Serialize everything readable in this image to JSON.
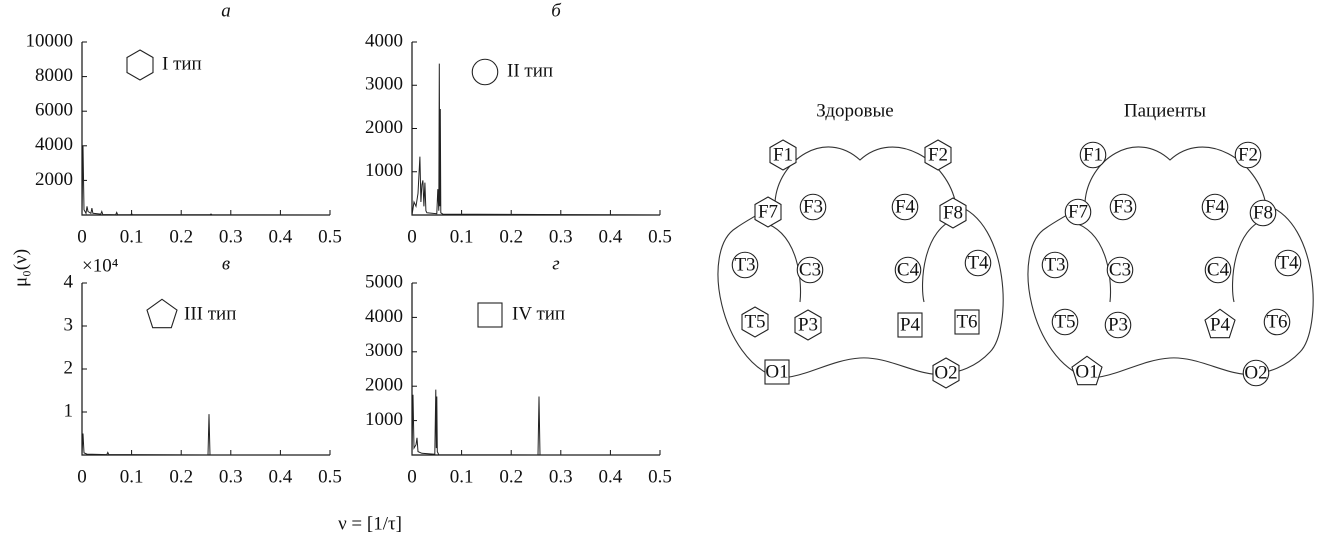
{
  "figure": {
    "ylabel": "μ₀(ν)",
    "xlabel": "ν = [1/τ]"
  },
  "chart_data": [
    {
      "type": "line",
      "title": "а",
      "xlim": [
        0,
        0.5
      ],
      "xticks": [
        0,
        0.1,
        0.2,
        0.3,
        0.4,
        0.5
      ],
      "ylim": [
        0,
        10000
      ],
      "yticks": [
        2000,
        4000,
        6000,
        8000,
        10000
      ],
      "x": [
        0,
        0.002,
        0.004,
        0.008,
        0.01,
        0.012,
        0.018,
        0.02,
        0.022,
        0.038,
        0.04,
        0.042,
        0.068,
        0.07,
        0.072,
        0.098,
        0.1,
        0.102,
        0.258,
        0.26,
        0.262,
        0.5
      ],
      "series": [
        {
          "name": "I тип",
          "marker": "hexagon",
          "color": "#222222",
          "values": [
            0,
            4000,
            300,
            100,
            500,
            200,
            100,
            400,
            100,
            50,
            200,
            30,
            20,
            150,
            20,
            10,
            80,
            10,
            10,
            60,
            10,
            0
          ]
        }
      ]
    },
    {
      "type": "line",
      "title": "б",
      "xlim": [
        0,
        0.5
      ],
      "xticks": [
        0,
        0.1,
        0.2,
        0.3,
        0.4,
        0.5
      ],
      "ylim": [
        0,
        4000
      ],
      "yticks": [
        1000,
        2000,
        3000,
        4000
      ],
      "x": [
        0,
        0.004,
        0.008,
        0.012,
        0.016,
        0.018,
        0.02,
        0.022,
        0.024,
        0.026,
        0.028,
        0.03,
        0.05,
        0.052,
        0.054,
        0.055,
        0.056,
        0.057,
        0.058,
        0.062,
        0.5
      ],
      "series": [
        {
          "name": "II тип",
          "marker": "circle",
          "color": "#222222",
          "values": [
            0,
            300,
            200,
            500,
            1350,
            300,
            700,
            800,
            200,
            750,
            100,
            50,
            30,
            600,
            100,
            3500,
            200,
            2450,
            50,
            20,
            0
          ]
        }
      ]
    },
    {
      "type": "line",
      "title": "в",
      "y_scale_label": "×10⁴",
      "xlim": [
        0,
        0.5
      ],
      "xticks": [
        0,
        0.1,
        0.2,
        0.3,
        0.4,
        0.5
      ],
      "ylim": [
        0,
        4
      ],
      "yticks": [
        1,
        2,
        3,
        4
      ],
      "x": [
        0,
        0.002,
        0.004,
        0.01,
        0.05,
        0.052,
        0.054,
        0.254,
        0.256,
        0.258,
        0.5
      ],
      "series": [
        {
          "name": "III тип",
          "marker": "pentagon",
          "color": "#222222",
          "values": [
            0,
            0.5,
            0.05,
            0.02,
            0.01,
            0.06,
            0.01,
            0,
            0.95,
            0,
            0
          ]
        }
      ]
    },
    {
      "type": "line",
      "title": "г",
      "xlim": [
        0,
        0.5
      ],
      "xticks": [
        0,
        0.1,
        0.2,
        0.3,
        0.4,
        0.5
      ],
      "ylim": [
        0,
        5000
      ],
      "yticks": [
        1000,
        2000,
        3000,
        4000,
        5000
      ],
      "x": [
        0,
        0.002,
        0.004,
        0.008,
        0.01,
        0.012,
        0.02,
        0.046,
        0.048,
        0.049,
        0.05,
        0.051,
        0.054,
        0.254,
        0.256,
        0.258,
        0.5
      ],
      "series": [
        {
          "name": "IV тип",
          "marker": "square",
          "color": "#222222",
          "values": [
            0,
            1750,
            200,
            300,
            500,
            100,
            50,
            20,
            1900,
            200,
            1700,
            100,
            10,
            0,
            1700,
            0,
            0
          ]
        }
      ]
    }
  ],
  "diagrams": [
    {
      "title": "Здоровые",
      "electrodes": [
        {
          "label": "F1",
          "shape": "hexagon"
        },
        {
          "label": "F2",
          "shape": "hexagon"
        },
        {
          "label": "F7",
          "shape": "hexagon"
        },
        {
          "label": "F3",
          "shape": "circle"
        },
        {
          "label": "F4",
          "shape": "circle"
        },
        {
          "label": "F8",
          "shape": "hexagon"
        },
        {
          "label": "T3",
          "shape": "circle"
        },
        {
          "label": "C3",
          "shape": "circle"
        },
        {
          "label": "C4",
          "shape": "circle"
        },
        {
          "label": "T4",
          "shape": "circle"
        },
        {
          "label": "T5",
          "shape": "hexagon"
        },
        {
          "label": "P3",
          "shape": "hexagon"
        },
        {
          "label": "P4",
          "shape": "square"
        },
        {
          "label": "T6",
          "shape": "square"
        },
        {
          "label": "O1",
          "shape": "square"
        },
        {
          "label": "O2",
          "shape": "hexagon"
        }
      ]
    },
    {
      "title": "Пациенты",
      "electrodes": [
        {
          "label": "F1",
          "shape": "circle"
        },
        {
          "label": "F2",
          "shape": "circle"
        },
        {
          "label": "F7",
          "shape": "circle"
        },
        {
          "label": "F3",
          "shape": "circle"
        },
        {
          "label": "F4",
          "shape": "circle"
        },
        {
          "label": "F8",
          "shape": "circle"
        },
        {
          "label": "T3",
          "shape": "circle"
        },
        {
          "label": "C3",
          "shape": "circle"
        },
        {
          "label": "C4",
          "shape": "circle"
        },
        {
          "label": "T4",
          "shape": "circle"
        },
        {
          "label": "T5",
          "shape": "circle"
        },
        {
          "label": "P3",
          "shape": "circle"
        },
        {
          "label": "P4",
          "shape": "pentagon"
        },
        {
          "label": "T6",
          "shape": "circle"
        },
        {
          "label": "O1",
          "shape": "pentagon"
        },
        {
          "label": "O2",
          "shape": "circle"
        }
      ]
    }
  ]
}
